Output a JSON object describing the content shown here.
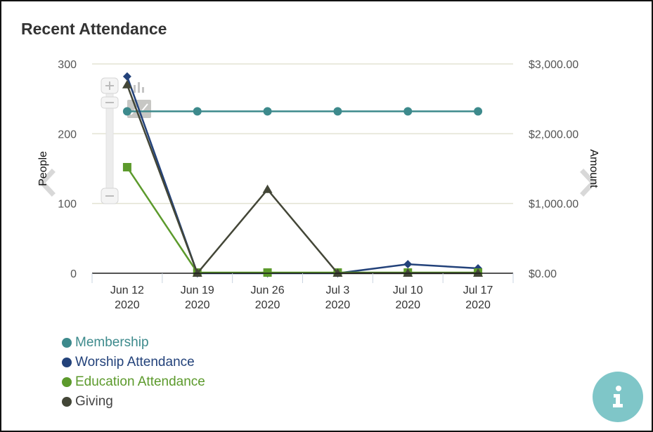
{
  "widget": {
    "title": "Recent Attendance"
  },
  "chart_data": {
    "type": "line",
    "title": "Recent Attendance",
    "categories": [
      [
        "Jun 12",
        "2020"
      ],
      [
        "Jun 19",
        "2020"
      ],
      [
        "Jun 26",
        "2020"
      ],
      [
        "Jul 3",
        "2020"
      ],
      [
        "Jul 10",
        "2020"
      ],
      [
        "Jul 17",
        "2020"
      ]
    ],
    "y_left": {
      "label": "People",
      "ylim": [
        0,
        300
      ],
      "ticks": [
        {
          "v": 0,
          "label": "0"
        },
        {
          "v": 100,
          "label": "100"
        },
        {
          "v": 200,
          "label": "200"
        },
        {
          "v": 300,
          "label": "300"
        }
      ]
    },
    "y_right": {
      "label": "Amount",
      "ylim": [
        0,
        3000
      ],
      "ticks": [
        {
          "v": 0,
          "label": "$0.00"
        },
        {
          "v": 1000,
          "label": "$1,000.00"
        },
        {
          "v": 2000,
          "label": "$2,000.00"
        },
        {
          "v": 3000,
          "label": "$3,000.00"
        }
      ]
    },
    "grid": true,
    "legend_position": "bottom-left",
    "series": [
      {
        "name": "Membership",
        "axis": "left",
        "marker": "circle",
        "color": "#3d8a8c",
        "values": [
          232,
          232,
          232,
          232,
          232,
          232
        ]
      },
      {
        "name": "Worship Attendance",
        "axis": "left",
        "marker": "diamond",
        "color": "#23427a",
        "values": [
          282,
          0,
          0,
          0,
          13,
          7
        ]
      },
      {
        "name": "Education Attendance",
        "axis": "left",
        "marker": "square",
        "color": "#5c9a2c",
        "values": [
          152,
          1,
          1,
          1,
          1,
          1
        ]
      },
      {
        "name": "Giving",
        "axis": "right",
        "marker": "triangle",
        "color": "#434637",
        "values": [
          2700,
          0,
          1200,
          0,
          0,
          0
        ]
      }
    ]
  },
  "controls": {
    "zoom_in_icon": "plus-icon",
    "zoom_out_icon": "minus-icon",
    "bar_chart_icon": "bar-chart-icon",
    "line_chart_icon": "line-chart-icon",
    "prev_icon": "chevron-left-icon",
    "next_icon": "chevron-right-icon",
    "info_icon": "info-icon"
  },
  "colors": {
    "axis_text": "#555555",
    "grid": "#e3e3d3",
    "info_button": "#7fc6c8"
  }
}
